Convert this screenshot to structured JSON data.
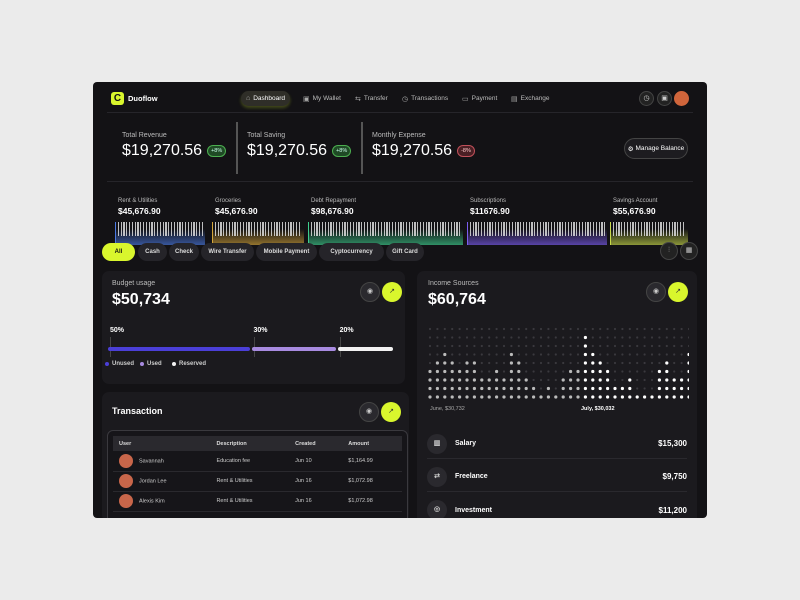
{
  "app": {
    "name": "Duoflow"
  },
  "nav": [
    {
      "label": "Dashboard",
      "icon": "home-icon",
      "active": true
    },
    {
      "label": "My Wallet",
      "icon": "wallet-icon"
    },
    {
      "label": "Transfer",
      "icon": "transfer-icon"
    },
    {
      "label": "Transactions",
      "icon": "clock-icon"
    },
    {
      "label": "Payment",
      "icon": "card-icon"
    },
    {
      "label": "Exchange",
      "icon": "exchange-icon"
    }
  ],
  "stats": [
    {
      "label": "Total Revenue",
      "value": "$19,270.56",
      "change": "+8%",
      "trend": "up"
    },
    {
      "label": "Total Saving",
      "value": "$19,270.56",
      "change": "+8%",
      "trend": "up"
    },
    {
      "label": "Monthly Expense",
      "value": "$19,270.56",
      "change": "-8%",
      "trend": "down"
    }
  ],
  "manage_balance": "Manage Balance",
  "categories": [
    {
      "label": "Rent & Utilities",
      "value": "$45,676.90",
      "color": "#4a78e0"
    },
    {
      "label": "Groceries",
      "value": "$45,676.90",
      "color": "#d4a53a"
    },
    {
      "label": "Debt Repayment",
      "value": "$98,676.90",
      "color": "#3ecf8e"
    },
    {
      "label": "Subscriptions",
      "value": "$11676.90",
      "color": "#7b5cf0"
    },
    {
      "label": "Savings Account",
      "value": "$55,676.90",
      "color": "#c8d94a"
    }
  ],
  "filters": [
    "All",
    "Cash",
    "Check",
    "Wire Transfer",
    "Mobile Payment",
    "Cyptocurrency",
    "Gift Card"
  ],
  "budget": {
    "title": "Budget usage",
    "value": "$50,734",
    "segments": [
      {
        "label": "Unused",
        "pct": "50%",
        "value": 50,
        "color": "#4b3fd8"
      },
      {
        "label": "Used",
        "pct": "30%",
        "value": 30,
        "color": "#a88be0"
      },
      {
        "label": "Reserved",
        "pct": "20%",
        "value": 20,
        "color": "#f2f2f2"
      }
    ]
  },
  "transactions": {
    "title": "Transaction",
    "columns": [
      "User",
      "Description",
      "Created",
      "Amount"
    ],
    "rows": [
      [
        "Savannah",
        "Education fee",
        "Jun 10",
        "$1,164.99"
      ],
      [
        "Jordan Lee",
        "Rent & Utilities",
        "Jun 16",
        "$1,072.98"
      ],
      [
        "Alexis Kim",
        "Rent & Utilities",
        "Jun 16",
        "$1,072.98"
      ]
    ]
  },
  "income": {
    "title": "Income Sources",
    "value": "$60,764",
    "june_label": "June, $30,732",
    "july_label": "July, $30,032",
    "june_columns": [
      4,
      5,
      6,
      5,
      4,
      5,
      5,
      3,
      3,
      4,
      3,
      6,
      5,
      3,
      2,
      1,
      2,
      1,
      3,
      4,
      4
    ],
    "july_columns": [
      8,
      6,
      5,
      4,
      2,
      2,
      3,
      1,
      1,
      1,
      4,
      5,
      3,
      3,
      6
    ],
    "sources": [
      {
        "label": "Salary",
        "amount": "$15,300",
        "icon": "building-icon"
      },
      {
        "label": "Freelance",
        "amount": "$9,750",
        "icon": "handshake-icon"
      },
      {
        "label": "Investment",
        "amount": "$11,200",
        "icon": "coin-icon"
      }
    ]
  },
  "accent": "#d9f62d"
}
